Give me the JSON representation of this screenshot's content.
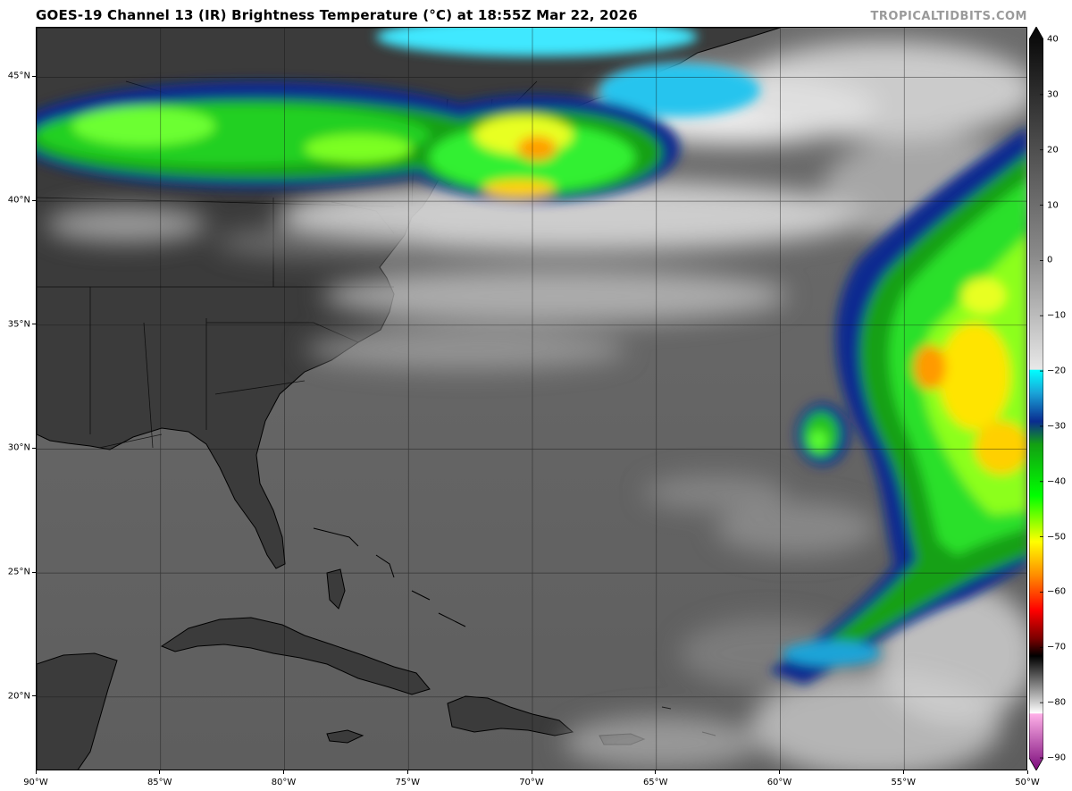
{
  "header": {
    "title": "GOES-19 Channel 13 (IR) Brightness Temperature (°C) at 18:55Z Mar 22, 2026",
    "site": "TROPICALTIDBITS.COM"
  },
  "map": {
    "projection": "equirectangular",
    "lon_range": [
      -90,
      -50
    ],
    "lat_range": [
      17,
      47
    ],
    "lon_ticks": [
      {
        "value": -90,
        "label": "90°W"
      },
      {
        "value": -85,
        "label": "85°W"
      },
      {
        "value": -80,
        "label": "80°W"
      },
      {
        "value": -75,
        "label": "75°W"
      },
      {
        "value": -70,
        "label": "70°W"
      },
      {
        "value": -65,
        "label": "65°W"
      },
      {
        "value": -60,
        "label": "60°W"
      },
      {
        "value": -55,
        "label": "55°W"
      },
      {
        "value": -50,
        "label": "50°W"
      }
    ],
    "lat_ticks": [
      {
        "value": 20,
        "label": "20°N"
      },
      {
        "value": 25,
        "label": "25°N"
      },
      {
        "value": 30,
        "label": "30°N"
      },
      {
        "value": 35,
        "label": "35°N"
      },
      {
        "value": 40,
        "label": "40°N"
      },
      {
        "value": 45,
        "label": "45°N"
      }
    ]
  },
  "colorbar": {
    "range": [
      -90,
      40
    ],
    "ticks": [
      40,
      30,
      20,
      10,
      0,
      -10,
      -20,
      -30,
      -40,
      -50,
      -60,
      -70,
      -80,
      -90
    ],
    "stops": [
      {
        "t": 40,
        "color": "#050505"
      },
      {
        "t": 20,
        "color": "#4a4a4a"
      },
      {
        "t": 0,
        "color": "#8a8a8a"
      },
      {
        "t": -19.9,
        "color": "#e8e8e8"
      },
      {
        "t": -20,
        "color": "#00ffff"
      },
      {
        "t": -24,
        "color": "#1aa4d8"
      },
      {
        "t": -29,
        "color": "#0a2c90"
      },
      {
        "t": -33,
        "color": "#13a013"
      },
      {
        "t": -42,
        "color": "#00ff00"
      },
      {
        "t": -50,
        "color": "#ffff00"
      },
      {
        "t": -56,
        "color": "#ff8a00"
      },
      {
        "t": -62,
        "color": "#ff0000"
      },
      {
        "t": -67,
        "color": "#7a0000"
      },
      {
        "t": -70,
        "color": "#000000"
      },
      {
        "t": -80,
        "color": "#ffffff"
      },
      {
        "t": -80.1,
        "color": "#ffb0e8"
      },
      {
        "t": -90,
        "color": "#7a0a7a"
      }
    ]
  }
}
